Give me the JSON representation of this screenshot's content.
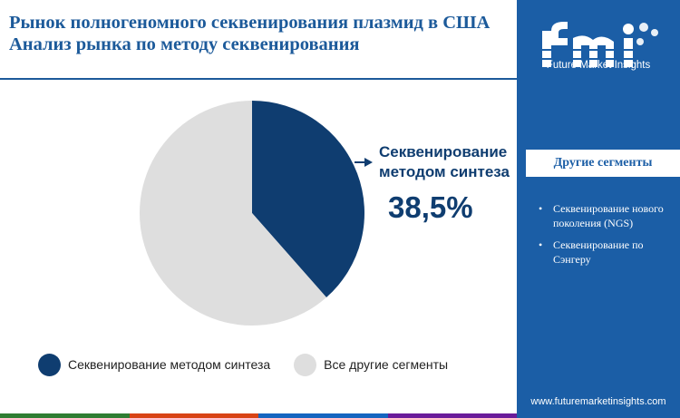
{
  "header": {
    "title_line1": "Рынок полногеномного секвенирования плазмид в США",
    "title_line2": "Анализ рынка по методу секвенирования"
  },
  "colors": {
    "accent": "#1c5a9a",
    "synthesis": "#0f3d70",
    "other": "#dedede",
    "panel": "#1b5ea6",
    "bottom_bar": [
      "#2e7d32",
      "#d84315",
      "#1565c0",
      "#6a1b9a"
    ]
  },
  "chart_data": {
    "type": "pie",
    "slices": [
      {
        "label": "Секвенирование методом синтеза",
        "value": 38.5,
        "color": "#0f3d70"
      },
      {
        "label": "Все другие сегменты",
        "value": 61.5,
        "color": "#dedede"
      }
    ],
    "start_angle_deg": 0,
    "direction": "clockwise",
    "callout": {
      "label_line1": "Секвенирование",
      "label_line2": "методом синтеза",
      "value_text": "38,5%"
    },
    "legend": {
      "position": "bottom",
      "items": [
        {
          "label": "Секвенирование методом синтеза",
          "color": "#0f3d70"
        },
        {
          "label": "Все другие сегменты",
          "color": "#dedede"
        }
      ]
    }
  },
  "brand": {
    "logo_text": "fmi",
    "caption": "Future Market Insights",
    "website": "www.futuremarketinsights.com"
  },
  "sidebar": {
    "title": "Другие сегменты",
    "items": [
      "Секвенирование нового поколения (NGS)",
      "Секвенирование по Сэнгеру"
    ]
  }
}
